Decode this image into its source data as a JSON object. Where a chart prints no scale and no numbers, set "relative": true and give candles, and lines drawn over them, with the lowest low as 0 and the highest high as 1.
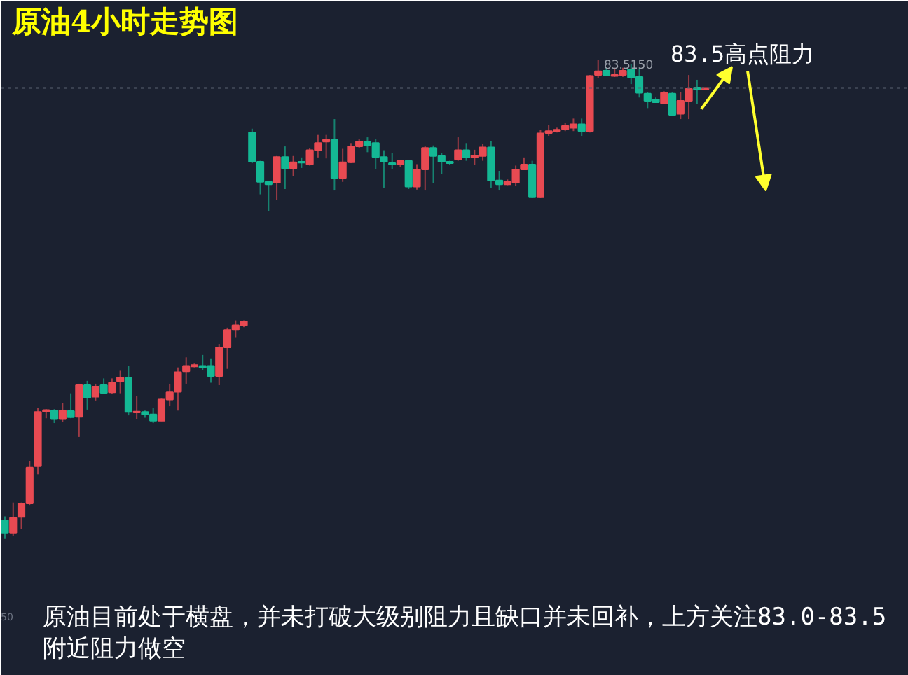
{
  "chart_data": {
    "type": "candlestick",
    "title": "原油4小时走势图",
    "relative": true,
    "tick_labels": false,
    "grid": false,
    "categories": [
      null,
      null,
      null,
      null,
      null,
      null,
      null,
      null,
      null,
      null,
      null,
      null,
      null,
      null,
      null,
      null,
      null,
      null,
      null,
      null,
      null,
      null,
      null,
      null,
      null,
      null,
      null,
      null,
      null,
      null,
      null,
      null,
      null,
      null,
      null,
      null,
      null,
      null,
      null,
      null,
      null,
      null,
      null,
      null,
      null,
      null,
      null,
      null,
      null,
      null,
      null,
      null,
      null,
      null,
      null,
      null,
      null,
      null,
      null,
      null,
      null,
      null,
      null,
      null,
      null,
      null,
      null,
      null,
      null,
      null,
      null,
      null,
      null,
      null,
      null,
      null,
      null,
      null,
      null,
      null,
      null,
      null,
      null,
      null,
      null,
      null
    ],
    "ohlc": [
      [
        0.039,
        0.047,
        0,
        0.013
      ],
      [
        0.013,
        0.076,
        0.007,
        0.044
      ],
      [
        0.046,
        0.076,
        0.02,
        0.074
      ],
      [
        0.074,
        0.162,
        0.071,
        0.149
      ],
      [
        0.152,
        0.274,
        0.135,
        0.265
      ],
      [
        0.266,
        0.271,
        0.252,
        0.269
      ],
      [
        0.268,
        0.271,
        0.242,
        0.25
      ],
      [
        0.25,
        0.284,
        0.245,
        0.268
      ],
      [
        0.267,
        0.304,
        0.252,
        0.254
      ],
      [
        0.255,
        0.324,
        0.213,
        0.321
      ],
      [
        0.321,
        0.33,
        0.27,
        0.295
      ],
      [
        0.297,
        0.324,
        0.289,
        0.318
      ],
      [
        0.321,
        0.335,
        0.302,
        0.305
      ],
      [
        0.306,
        0.335,
        0.302,
        0.326
      ],
      [
        0.329,
        0.351,
        0.304,
        0.337
      ],
      [
        0.336,
        0.361,
        0.258,
        0.265
      ],
      [
        0.264,
        0.299,
        0.25,
        0.266
      ],
      [
        0.265,
        0.268,
        0.253,
        0.26
      ],
      [
        0.26,
        0.274,
        0.242,
        0.247
      ],
      [
        0.247,
        0.293,
        0.246,
        0.291
      ],
      [
        0.291,
        0.324,
        0.277,
        0.306
      ],
      [
        0.307,
        0.358,
        0.268,
        0.348
      ],
      [
        0.35,
        0.379,
        0.324,
        0.361
      ],
      [
        0.36,
        0.366,
        0.358,
        0.363
      ],
      [
        0.361,
        0.384,
        0.353,
        0.358
      ],
      [
        0.361,
        0.377,
        0.326,
        0.34
      ],
      [
        0.34,
        0.407,
        0.321,
        0.4
      ],
      [
        0.4,
        0.441,
        0.355,
        0.436
      ],
      [
        0.436,
        0.456,
        0.421,
        0.446
      ],
      [
        0.446,
        0.456,
        0.442,
        0.454
      ],
      [
        0.848,
        0.856,
        0.784,
        0.787
      ],
      [
        0.787,
        0.789,
        0.719,
        0.745
      ],
      [
        0.745,
        0.745,
        0.684,
        0.74
      ],
      [
        0.743,
        0.799,
        0.708,
        0.797
      ],
      [
        0.797,
        0.819,
        0.73,
        0.773
      ],
      [
        0.773,
        0.799,
        0.757,
        0.786
      ],
      [
        0.787,
        0.796,
        0.774,
        0.785
      ],
      [
        0.782,
        0.816,
        0.779,
        0.811
      ],
      [
        0.811,
        0.843,
        0.796,
        0.826
      ],
      [
        0.829,
        0.843,
        0.794,
        0.833
      ],
      [
        0.833,
        0.876,
        0.727,
        0.753
      ],
      [
        0.753,
        0.814,
        0.745,
        0.786
      ],
      [
        0.786,
        0.826,
        0.784,
        0.819
      ],
      [
        0.819,
        0.835,
        0.816,
        0.829
      ],
      [
        0.829,
        0.838,
        0.807,
        0.821
      ],
      [
        0.826,
        0.835,
        0.771,
        0.797
      ],
      [
        0.797,
        0.811,
        0.733,
        0.787
      ],
      [
        0.784,
        0.806,
        0.771,
        0.781
      ],
      [
        0.781,
        0.791,
        0.776,
        0.789
      ],
      [
        0.789,
        0.791,
        0.73,
        0.735
      ],
      [
        0.735,
        0.782,
        0.729,
        0.771
      ],
      [
        0.771,
        0.819,
        0.727,
        0.816
      ],
      [
        0.816,
        0.821,
        0.742,
        0.799
      ],
      [
        0.799,
        0.806,
        0.762,
        0.787
      ],
      [
        0.787,
        0.789,
        0.781,
        0.784
      ],
      [
        0.792,
        0.838,
        0.789,
        0.811
      ],
      [
        0.811,
        0.826,
        0.789,
        0.796
      ],
      [
        0.796,
        0.812,
        0.781,
        0.8
      ],
      [
        0.799,
        0.824,
        0.789,
        0.817
      ],
      [
        0.817,
        0.83,
        0.733,
        0.748
      ],
      [
        0.748,
        0.768,
        0.727,
        0.74
      ],
      [
        0.74,
        0.75,
        0.738,
        0.745
      ],
      [
        0.743,
        0.779,
        0.737,
        0.771
      ],
      [
        0.771,
        0.796,
        0.77,
        0.781
      ],
      [
        0.781,
        0.789,
        0.711,
        0.713
      ],
      [
        0.713,
        0.853,
        0.711,
        0.846
      ],
      [
        0.847,
        0.863,
        0.841,
        0.851
      ],
      [
        0.851,
        0.858,
        0.848,
        0.854
      ],
      [
        0.855,
        0.868,
        0.851,
        0.862
      ],
      [
        0.858,
        0.877,
        0.851,
        0.865
      ],
      [
        0.865,
        0.877,
        0.841,
        0.851
      ],
      [
        0.851,
        0.968,
        0.848,
        0.966
      ],
      [
        0.968,
        1,
        0.961,
        0.976
      ],
      [
        0.977,
        0.983,
        0.966,
        0.968
      ],
      [
        0.966,
        0.983,
        0.964,
        0.968
      ],
      [
        0.968,
        0.983,
        0.964,
        0.977
      ],
      [
        0.979,
        0.99,
        0.949,
        0.963
      ],
      [
        0.964,
        0.98,
        0.921,
        0.931
      ],
      [
        0.929,
        0.933,
        0.899,
        0.914
      ],
      [
        0.917,
        0.921,
        0.91,
        0.911
      ],
      [
        0.909,
        0.934,
        0.907,
        0.931
      ],
      [
        0.929,
        0.933,
        0.882,
        0.885
      ],
      [
        0.887,
        0.933,
        0.876,
        0.914
      ],
      [
        0.914,
        0.968,
        0.876,
        0.939
      ],
      [
        0.942,
        0.958,
        0.907,
        0.938
      ],
      [
        0.938,
        0.941,
        0.938,
        0.941
      ]
    ],
    "colors": [
      "#14b894",
      "#e84a52",
      "#e84a52",
      "#e84a52",
      "#e84a52",
      "#e84a52",
      "#14b894",
      "#e84a52",
      "#14b894",
      "#e84a52",
      "#14b894",
      "#e84a52",
      "#14b894",
      "#e84a52",
      "#e84a52",
      "#14b894",
      "#e84a52",
      "#14b894",
      "#14b894",
      "#e84a52",
      "#e84a52",
      "#e84a52",
      "#e84a52",
      "#e84a52",
      "#14b894",
      "#14b894",
      "#e84a52",
      "#e84a52",
      "#e84a52",
      "#e84a52",
      "#14b894",
      "#14b894",
      "#14b894",
      "#e84a52",
      "#14b894",
      "#e84a52",
      "#14b894",
      "#e84a52",
      "#e84a52",
      "#e84a52",
      "#14b894",
      "#e84a52",
      "#e84a52",
      "#e84a52",
      "#14b894",
      "#14b894",
      "#14b894",
      "#14b894",
      "#e84a52",
      "#14b894",
      "#e84a52",
      "#e84a52",
      "#14b894",
      "#14b894",
      "#14b894",
      "#e84a52",
      "#14b894",
      "#e84a52",
      "#e84a52",
      "#14b894",
      "#14b894",
      "#e84a52",
      "#e84a52",
      "#e84a52",
      "#14b894",
      "#e84a52",
      "#e84a52",
      "#e84a52",
      "#e84a52",
      "#e84a52",
      "#14b894",
      "#e84a52",
      "#e84a52",
      "#14b894",
      "#e84a52",
      "#e84a52",
      "#14b894",
      "#14b894",
      "#14b894",
      "#14b894",
      "#e84a52",
      "#14b894",
      "#e84a52",
      "#e84a52",
      "#14b894",
      "#e84a52"
    ],
    "ref_lines": [
      {
        "axis": "y",
        "value": 0.941,
        "line_style": "dotted",
        "color": "#5b6270"
      }
    ],
    "annotations": [
      {
        "text": "83.5150",
        "y": 1
      },
      "83.5高点阻力",
      "原油目前处于横盘，并未打破大级别阻力且缺口并未回补，上方关注83.0-83.5附近阻力做空",
      "50"
    ]
  }
}
